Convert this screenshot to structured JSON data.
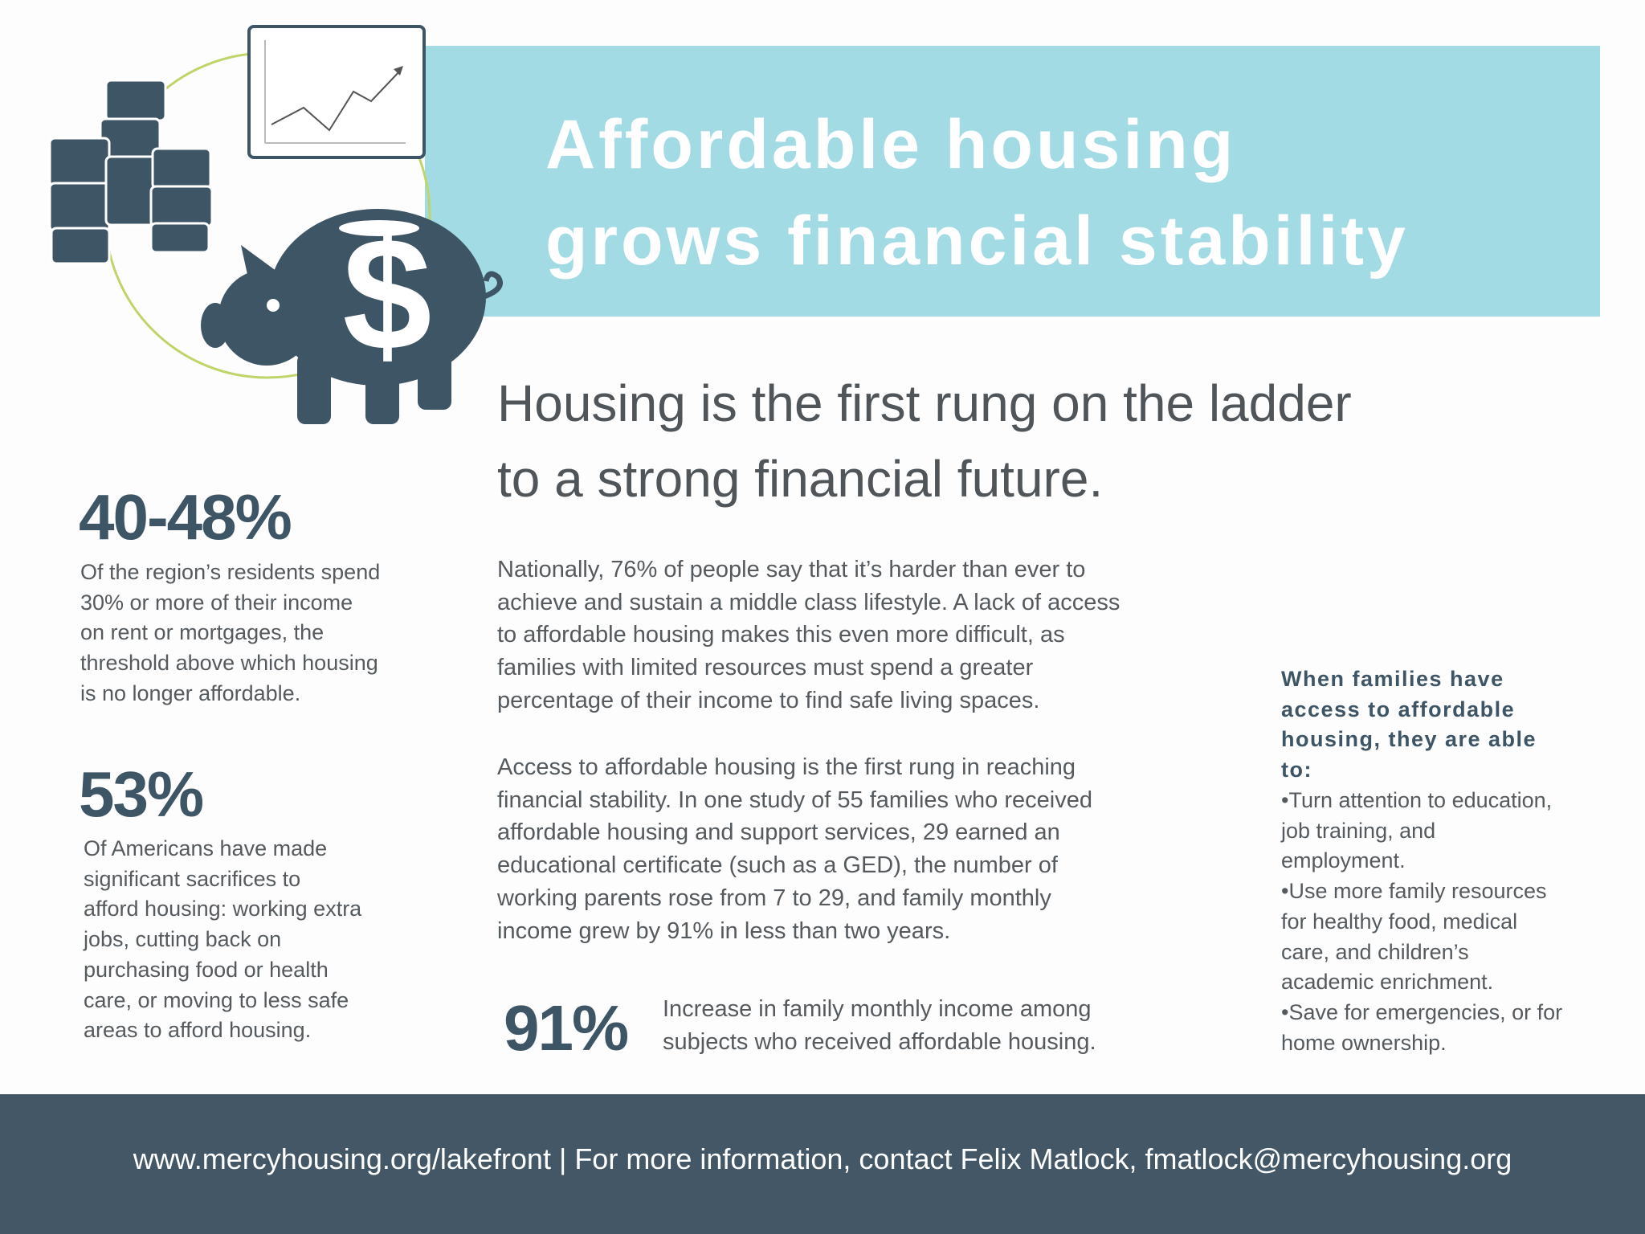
{
  "header": {
    "title": [
      "Affordable housing",
      "grows financial stability"
    ]
  },
  "headline": [
    "Housing is the first rung on the ladder",
    "to a strong financial future."
  ],
  "stats": [
    {
      "figure": "40-48%",
      "text": [
        "Of the region’s residents spend",
        "30% or more of their income",
        "on rent or mortgages, the",
        "threshold above which housing",
        "is no longer affordable."
      ]
    },
    {
      "figure": "53%",
      "text": [
        "Of Americans have made",
        "significant sacrifices to",
        "afford housing: working extra",
        "jobs, cutting back on",
        "purchasing food or health",
        "care, or moving to less safe",
        "areas to afford housing."
      ]
    }
  ],
  "body": {
    "paragraphs": [
      [
        "Nationally, 76% of people say that it’s harder than ever to",
        "achieve and sustain a middle class lifestyle. A lack of access",
        "to affordable housing makes this even more difficult, as",
        "families with limited resources must spend a greater",
        "percentage of their income to find safe living spaces."
      ],
      [
        "Access to affordable housing is the first rung in reaching",
        "financial stability. In one study of 55 families who received",
        "affordable housing and support services, 29 earned an",
        "educational certificate (such as a GED), the number of",
        "working parents rose from 7 to 29, and family monthly",
        "income grew by 91% in less than two years."
      ]
    ]
  },
  "highlight": {
    "figure": "91%",
    "text": [
      "Increase in family monthly income among",
      "subjects who received affordable housing."
    ]
  },
  "sidebar": {
    "heading": [
      "When families have",
      "access to affordable",
      "housing, they are able",
      "to:"
    ],
    "items": [
      [
        "•Turn attention to education,",
        "job training, and",
        "employment."
      ],
      [
        "•Use more family resources",
        "for healthy food, medical",
        "care, and children’s",
        "academic enrichment."
      ],
      [
        "•Save for emergencies, or for",
        "home ownership."
      ]
    ]
  },
  "footer": {
    "text": "www.mercyhousing.org/lakefront | For more information, contact Felix Matlock, fmatlock@mercyhousing.org"
  }
}
